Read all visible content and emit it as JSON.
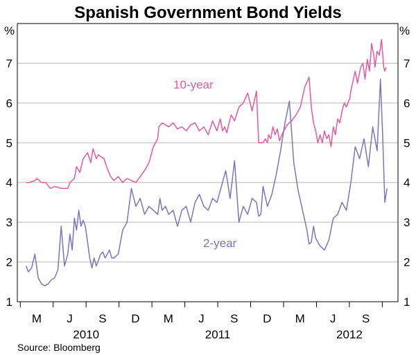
{
  "chart_data": {
    "type": "line",
    "title": "Spanish Government Bond Yields",
    "ylabel_left": "%",
    "ylabel_right": "%",
    "ylim": [
      1,
      8
    ],
    "yticks": [
      1,
      2,
      3,
      4,
      5,
      6,
      7
    ],
    "x_month_ticks": [
      "M",
      "J",
      "S",
      "D",
      "M",
      "J",
      "S",
      "D",
      "M",
      "J",
      "S"
    ],
    "x_year_labels": [
      "2010",
      "2011",
      "2012"
    ],
    "source": "Source: Bloomberg",
    "colors": {
      "ten_year": "#e9579f",
      "two_year": "#7b74bd",
      "axis": "#000000",
      "grid": "#b8b8b8"
    },
    "series": [
      {
        "name": "10-year",
        "label": "10-year",
        "color": "#e9579f",
        "x": [
          0,
          0.15,
          0.4,
          0.5,
          0.7,
          0.9,
          1.1,
          1.3,
          1.6,
          1.9,
          2.0,
          2.2,
          2.3,
          2.45,
          2.6,
          2.8,
          2.95,
          3.05,
          3.2,
          3.3,
          3.4,
          3.55,
          3.7,
          3.85,
          4.0,
          4.2,
          4.4,
          4.6,
          4.8,
          5.0,
          5.2,
          5.4,
          5.6,
          5.8,
          6.0,
          6.05,
          6.2,
          6.35,
          6.5,
          6.7,
          6.9,
          7.1,
          7.3,
          7.5,
          7.7,
          7.9,
          8.1,
          8.3,
          8.5,
          8.7,
          8.85,
          8.95,
          9.05,
          9.15,
          9.25,
          9.35,
          9.5,
          9.7,
          9.9,
          10.1,
          10.3,
          10.5,
          10.6,
          10.7,
          10.8,
          10.9,
          11.0,
          11.05,
          11.15,
          11.25,
          11.35,
          11.45,
          11.55,
          11.7,
          11.9,
          12.1,
          12.3,
          12.5,
          12.7,
          12.9,
          13.0,
          13.1,
          13.2,
          13.3,
          13.4,
          13.5,
          13.6,
          13.7,
          13.8,
          13.9,
          14.0,
          14.1,
          14.2,
          14.3,
          14.4,
          14.5,
          14.6,
          14.7,
          14.75,
          14.8,
          14.9,
          15.0,
          15.1,
          15.25
        ],
        "values": [
          4.0,
          4.0,
          4.05,
          4.1,
          4.0,
          4.0,
          3.85,
          3.9,
          3.85,
          3.85,
          4.0,
          4.1,
          4.4,
          4.25,
          4.6,
          4.75,
          4.5,
          4.85,
          4.6,
          4.7,
          4.65,
          4.6,
          4.35,
          4.15,
          4.05,
          4.15,
          4.0,
          4.1,
          4.05,
          4.0,
          4.15,
          4.3,
          4.5,
          4.9,
          5.1,
          5.4,
          5.5,
          5.45,
          5.4,
          5.5,
          5.35,
          5.4,
          5.3,
          5.45,
          5.5,
          5.3,
          5.4,
          5.2,
          5.55,
          5.3,
          5.6,
          5.3,
          5.4,
          5.25,
          5.5,
          5.7,
          5.55,
          5.9,
          6.0,
          6.25,
          5.8,
          6.3,
          5.0,
          5.0,
          5.0,
          5.1,
          5.0,
          5.2,
          5.1,
          5.4,
          5.2,
          5.35,
          5.05,
          5.25,
          5.45,
          5.55,
          5.7,
          5.9,
          6.4,
          6.65,
          5.9,
          5.5,
          5.3,
          5.0,
          5.2,
          5.0,
          5.3,
          5.1,
          5.2,
          4.9,
          5.4,
          5.2,
          5.6,
          5.5,
          5.8,
          6.0,
          5.9,
          6.05,
          6.1,
          6.3,
          6.55,
          6.8,
          6.5,
          6.9
        ],
        "values_tail": [
          7.0,
          6.6,
          7.1,
          6.8,
          7.5,
          7.2,
          6.9,
          7.3,
          7.2,
          7.6,
          6.9,
          6.8,
          6.9
        ],
        "x_tail": [
          15.35,
          15.45,
          15.55,
          15.65,
          15.75,
          15.85,
          15.9,
          16.0,
          16.1,
          16.2,
          16.3,
          16.35,
          16.4
        ]
      },
      {
        "name": "2-year",
        "label": "2-year",
        "color": "#7b74bd",
        "x": [
          0,
          0.1,
          0.25,
          0.4,
          0.55,
          0.7,
          0.85,
          1.0,
          1.15,
          1.3,
          1.45,
          1.6,
          1.75,
          1.9,
          2.0,
          2.1,
          2.2,
          2.3,
          2.4,
          2.5,
          2.6,
          2.7,
          2.8,
          2.9,
          3.0,
          3.1,
          3.2,
          3.3,
          3.4,
          3.5,
          3.6,
          3.7,
          3.8,
          3.9,
          4.0,
          4.2,
          4.4,
          4.6,
          4.8,
          5.0,
          5.2,
          5.4,
          5.6,
          5.8,
          6.0,
          6.1,
          6.2,
          6.35,
          6.5,
          6.7,
          6.9,
          7.1,
          7.3,
          7.5,
          7.7,
          7.9,
          8.1,
          8.3,
          8.5,
          8.7,
          8.9,
          9.1,
          9.3,
          9.5,
          9.7,
          9.9,
          10.1,
          10.3,
          10.5,
          10.6,
          10.7,
          10.8,
          11.0,
          11.2,
          11.4,
          11.6,
          11.8,
          12.0,
          12.2,
          12.4,
          12.6,
          12.8,
          12.9,
          13.0,
          13.1,
          13.2,
          13.4,
          13.6,
          13.8,
          14.0,
          14.2,
          14.4,
          14.6,
          14.8,
          15.0,
          15.2,
          15.4,
          15.6,
          15.8,
          16.0,
          16.15,
          16.25,
          16.35,
          16.45
        ],
        "values": [
          1.9,
          1.75,
          1.85,
          2.2,
          1.6,
          1.45,
          1.4,
          1.45,
          1.55,
          1.6,
          1.8,
          2.9,
          1.9,
          2.2,
          2.7,
          2.3,
          3.1,
          2.8,
          3.3,
          2.9,
          3.05,
          2.9,
          2.5,
          2.1,
          1.85,
          2.1,
          1.9,
          2.05,
          2.2,
          2.25,
          2.1,
          2.2,
          2.3,
          2.1,
          2.1,
          2.2,
          2.8,
          3.0,
          3.85,
          3.4,
          3.6,
          3.2,
          3.4,
          3.3,
          3.2,
          3.6,
          3.3,
          3.4,
          3.2,
          3.3,
          2.9,
          3.3,
          3.4,
          3.0,
          3.5,
          3.7,
          3.4,
          3.3,
          3.6,
          3.5,
          3.9,
          4.3,
          3.6,
          4.55,
          3.0,
          3.4,
          3.2,
          3.6,
          3.5,
          3.15,
          3.2,
          3.9,
          3.4,
          3.7,
          4.2,
          4.8,
          5.5,
          6.05,
          4.5,
          3.8,
          3.3,
          2.8,
          2.45,
          2.5,
          2.9,
          2.6,
          2.4,
          2.3,
          2.55,
          3.1,
          3.2,
          3.5,
          3.3,
          4.0,
          4.9,
          4.6,
          5.1,
          4.4,
          5.4,
          4.8,
          6.6,
          5.2,
          3.5,
          3.85
        ]
      }
    ]
  }
}
